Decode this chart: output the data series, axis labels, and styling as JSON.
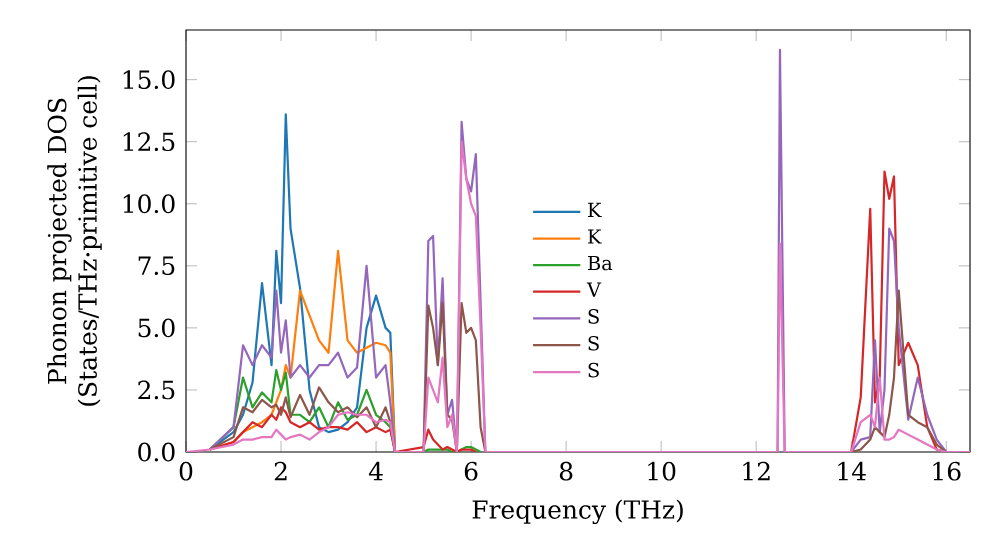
{
  "chart_data": {
    "type": "line",
    "xlabel": "Frequency (THz)",
    "ylabel": "Phonon projected DOS\n(States/THz·primitive cell)",
    "x": [
      0,
      0.5,
      1.0,
      1.2,
      1.4,
      1.6,
      1.8,
      1.9,
      2.0,
      2.1,
      2.2,
      2.4,
      2.6,
      2.8,
      3.0,
      3.2,
      3.4,
      3.6,
      3.8,
      4.0,
      4.2,
      4.3,
      4.4,
      5.0,
      5.1,
      5.2,
      5.3,
      5.4,
      5.5,
      5.6,
      5.7,
      5.8,
      5.9,
      6.0,
      6.1,
      6.2,
      6.3,
      6.4,
      12.3,
      12.45,
      12.5,
      12.6,
      12.7,
      14.0,
      14.2,
      14.4,
      14.5,
      14.6,
      14.7,
      14.8,
      14.9,
      15.0,
      15.2,
      15.4,
      15.6,
      15.8,
      16.0,
      16.5
    ],
    "series": [
      {
        "name": "K",
        "color": "#1f77b4",
        "values": [
          null,
          0.1,
          0.8,
          1.5,
          2.8,
          6.8,
          3.5,
          8.1,
          6.0,
          13.6,
          9.0,
          6.6,
          2.5,
          1.0,
          0.8,
          0.9,
          1.2,
          1.8,
          5.0,
          6.3,
          5.0,
          4.8,
          0,
          null,
          null,
          null,
          null,
          null,
          null,
          null,
          null,
          null,
          null,
          null,
          null,
          null,
          null,
          null,
          null,
          null,
          null,
          null,
          null,
          null,
          null,
          null,
          null,
          null,
          null,
          null,
          null,
          null,
          null,
          null,
          null,
          null,
          null,
          null
        ]
      },
      {
        "name": "K",
        "color": "#ff7f0e",
        "values": [
          null,
          0.1,
          0.4,
          0.8,
          1.0,
          1.2,
          1.5,
          2.0,
          2.5,
          3.5,
          3.0,
          6.5,
          5.5,
          4.5,
          4.0,
          8.1,
          4.5,
          4.0,
          4.2,
          4.4,
          4.3,
          4.0,
          0,
          null,
          null,
          null,
          null,
          null,
          null,
          null,
          null,
          null,
          null,
          null,
          null,
          null,
          null,
          null,
          null,
          null,
          null,
          null,
          null,
          null,
          null,
          null,
          null,
          null,
          null,
          null,
          null,
          null,
          null,
          null,
          null,
          null,
          null,
          null
        ]
      },
      {
        "name": "Ba",
        "color": "#2ca02c",
        "values": [
          null,
          0.1,
          1.0,
          3.0,
          1.8,
          2.4,
          2.0,
          3.3,
          2.5,
          3.2,
          1.5,
          1.5,
          1.2,
          1.8,
          1.0,
          2.0,
          1.3,
          1.5,
          2.5,
          1.5,
          1.2,
          1.0,
          0,
          0,
          0.1,
          0.1,
          0.1,
          0.1,
          0.1,
          0,
          0,
          0.1,
          0.2,
          0.2,
          0.1,
          0,
          null,
          null,
          null,
          null,
          null,
          null,
          null,
          null,
          null,
          null,
          null,
          null,
          null,
          null,
          null,
          null,
          null,
          null,
          null,
          null,
          null,
          null
        ]
      },
      {
        "name": "V",
        "color": "#d62728",
        "values": [
          null,
          0.1,
          0.4,
          0.8,
          1.2,
          1.0,
          1.5,
          1.3,
          1.8,
          1.6,
          1.2,
          1.0,
          1.2,
          0.9,
          1.0,
          1.0,
          0.9,
          1.2,
          0.8,
          1.0,
          0.8,
          0.9,
          0,
          0.2,
          0.9,
          0.5,
          0.3,
          0.1,
          0.2,
          0.1,
          0,
          0.1,
          0.1,
          0.1,
          0,
          null,
          null,
          null,
          null,
          null,
          null,
          null,
          null,
          0,
          2.2,
          9.8,
          2.0,
          3.0,
          11.3,
          10.2,
          11.1,
          3.5,
          4.4,
          3.5,
          1.0,
          0.1,
          0,
          null
        ]
      },
      {
        "name": "S",
        "color": "#9467bd",
        "values": [
          null,
          0.1,
          1.0,
          4.3,
          3.5,
          4.3,
          3.8,
          6.5,
          4.0,
          5.3,
          3.0,
          3.5,
          3.0,
          3.5,
          3.5,
          4.0,
          3.0,
          3.4,
          7.5,
          3.0,
          3.5,
          2.0,
          0,
          0,
          8.5,
          8.7,
          3.5,
          7.0,
          1.5,
          2.1,
          0,
          13.3,
          11.0,
          10.5,
          12.0,
          6.0,
          0,
          null,
          null,
          0,
          16.2,
          0,
          null,
          0,
          0.5,
          0.6,
          4.5,
          0.8,
          2.5,
          9.0,
          8.5,
          5.0,
          1.3,
          3.0,
          1.5,
          0.5,
          0,
          null
        ]
      },
      {
        "name": "S",
        "color": "#8c564b",
        "values": [
          null,
          0.1,
          0.6,
          1.8,
          1.6,
          2.1,
          1.8,
          1.9,
          1.5,
          2.2,
          1.4,
          2.3,
          1.5,
          2.6,
          2.0,
          1.6,
          1.8,
          1.4,
          1.8,
          1.0,
          1.8,
          1.2,
          0,
          0,
          5.9,
          5.0,
          3.5,
          6.0,
          1.5,
          1.3,
          0,
          6.0,
          4.8,
          5.0,
          4.5,
          1.0,
          0,
          null,
          null,
          null,
          null,
          null,
          null,
          0,
          0.1,
          0.5,
          1.0,
          0.8,
          0.6,
          1.5,
          3.0,
          6.5,
          1.5,
          1.2,
          1.0,
          0.3,
          0,
          null
        ]
      },
      {
        "name": "S",
        "color": "#e377c2",
        "values": [
          0,
          0.1,
          0.3,
          0.5,
          0.5,
          0.6,
          0.6,
          0.9,
          0.7,
          0.5,
          0.6,
          0.7,
          0.5,
          0.8,
          1.0,
          1.5,
          1.6,
          1.5,
          1.5,
          1.2,
          1.3,
          1.2,
          0,
          0,
          3.0,
          2.5,
          2.0,
          3.8,
          1.0,
          1.5,
          0,
          12.5,
          11.0,
          10.0,
          9.5,
          5.0,
          0,
          0,
          0,
          0,
          8.4,
          0,
          0,
          0,
          1.2,
          1.5,
          1.0,
          3.0,
          0.5,
          0.5,
          0.6,
          0.9,
          0.7,
          0.5,
          0.3,
          0.1,
          0,
          0
        ]
      }
    ],
    "xlim": [
      0,
      16.5
    ],
    "ylim": [
      0,
      17
    ],
    "xticks": [
      0,
      2,
      4,
      6,
      8,
      10,
      12,
      14,
      16
    ],
    "yticks": [
      {
        "value": 0,
        "label": "0.0"
      },
      {
        "value": 2.5,
        "label": "2.5"
      },
      {
        "value": 5,
        "label": "5.0"
      },
      {
        "value": 7.5,
        "label": "7.5"
      },
      {
        "value": 10,
        "label": "10.0"
      },
      {
        "value": 12.5,
        "label": "12.5"
      },
      {
        "value": 15,
        "label": "15.0"
      }
    ],
    "legend": "center",
    "grid": false
  }
}
